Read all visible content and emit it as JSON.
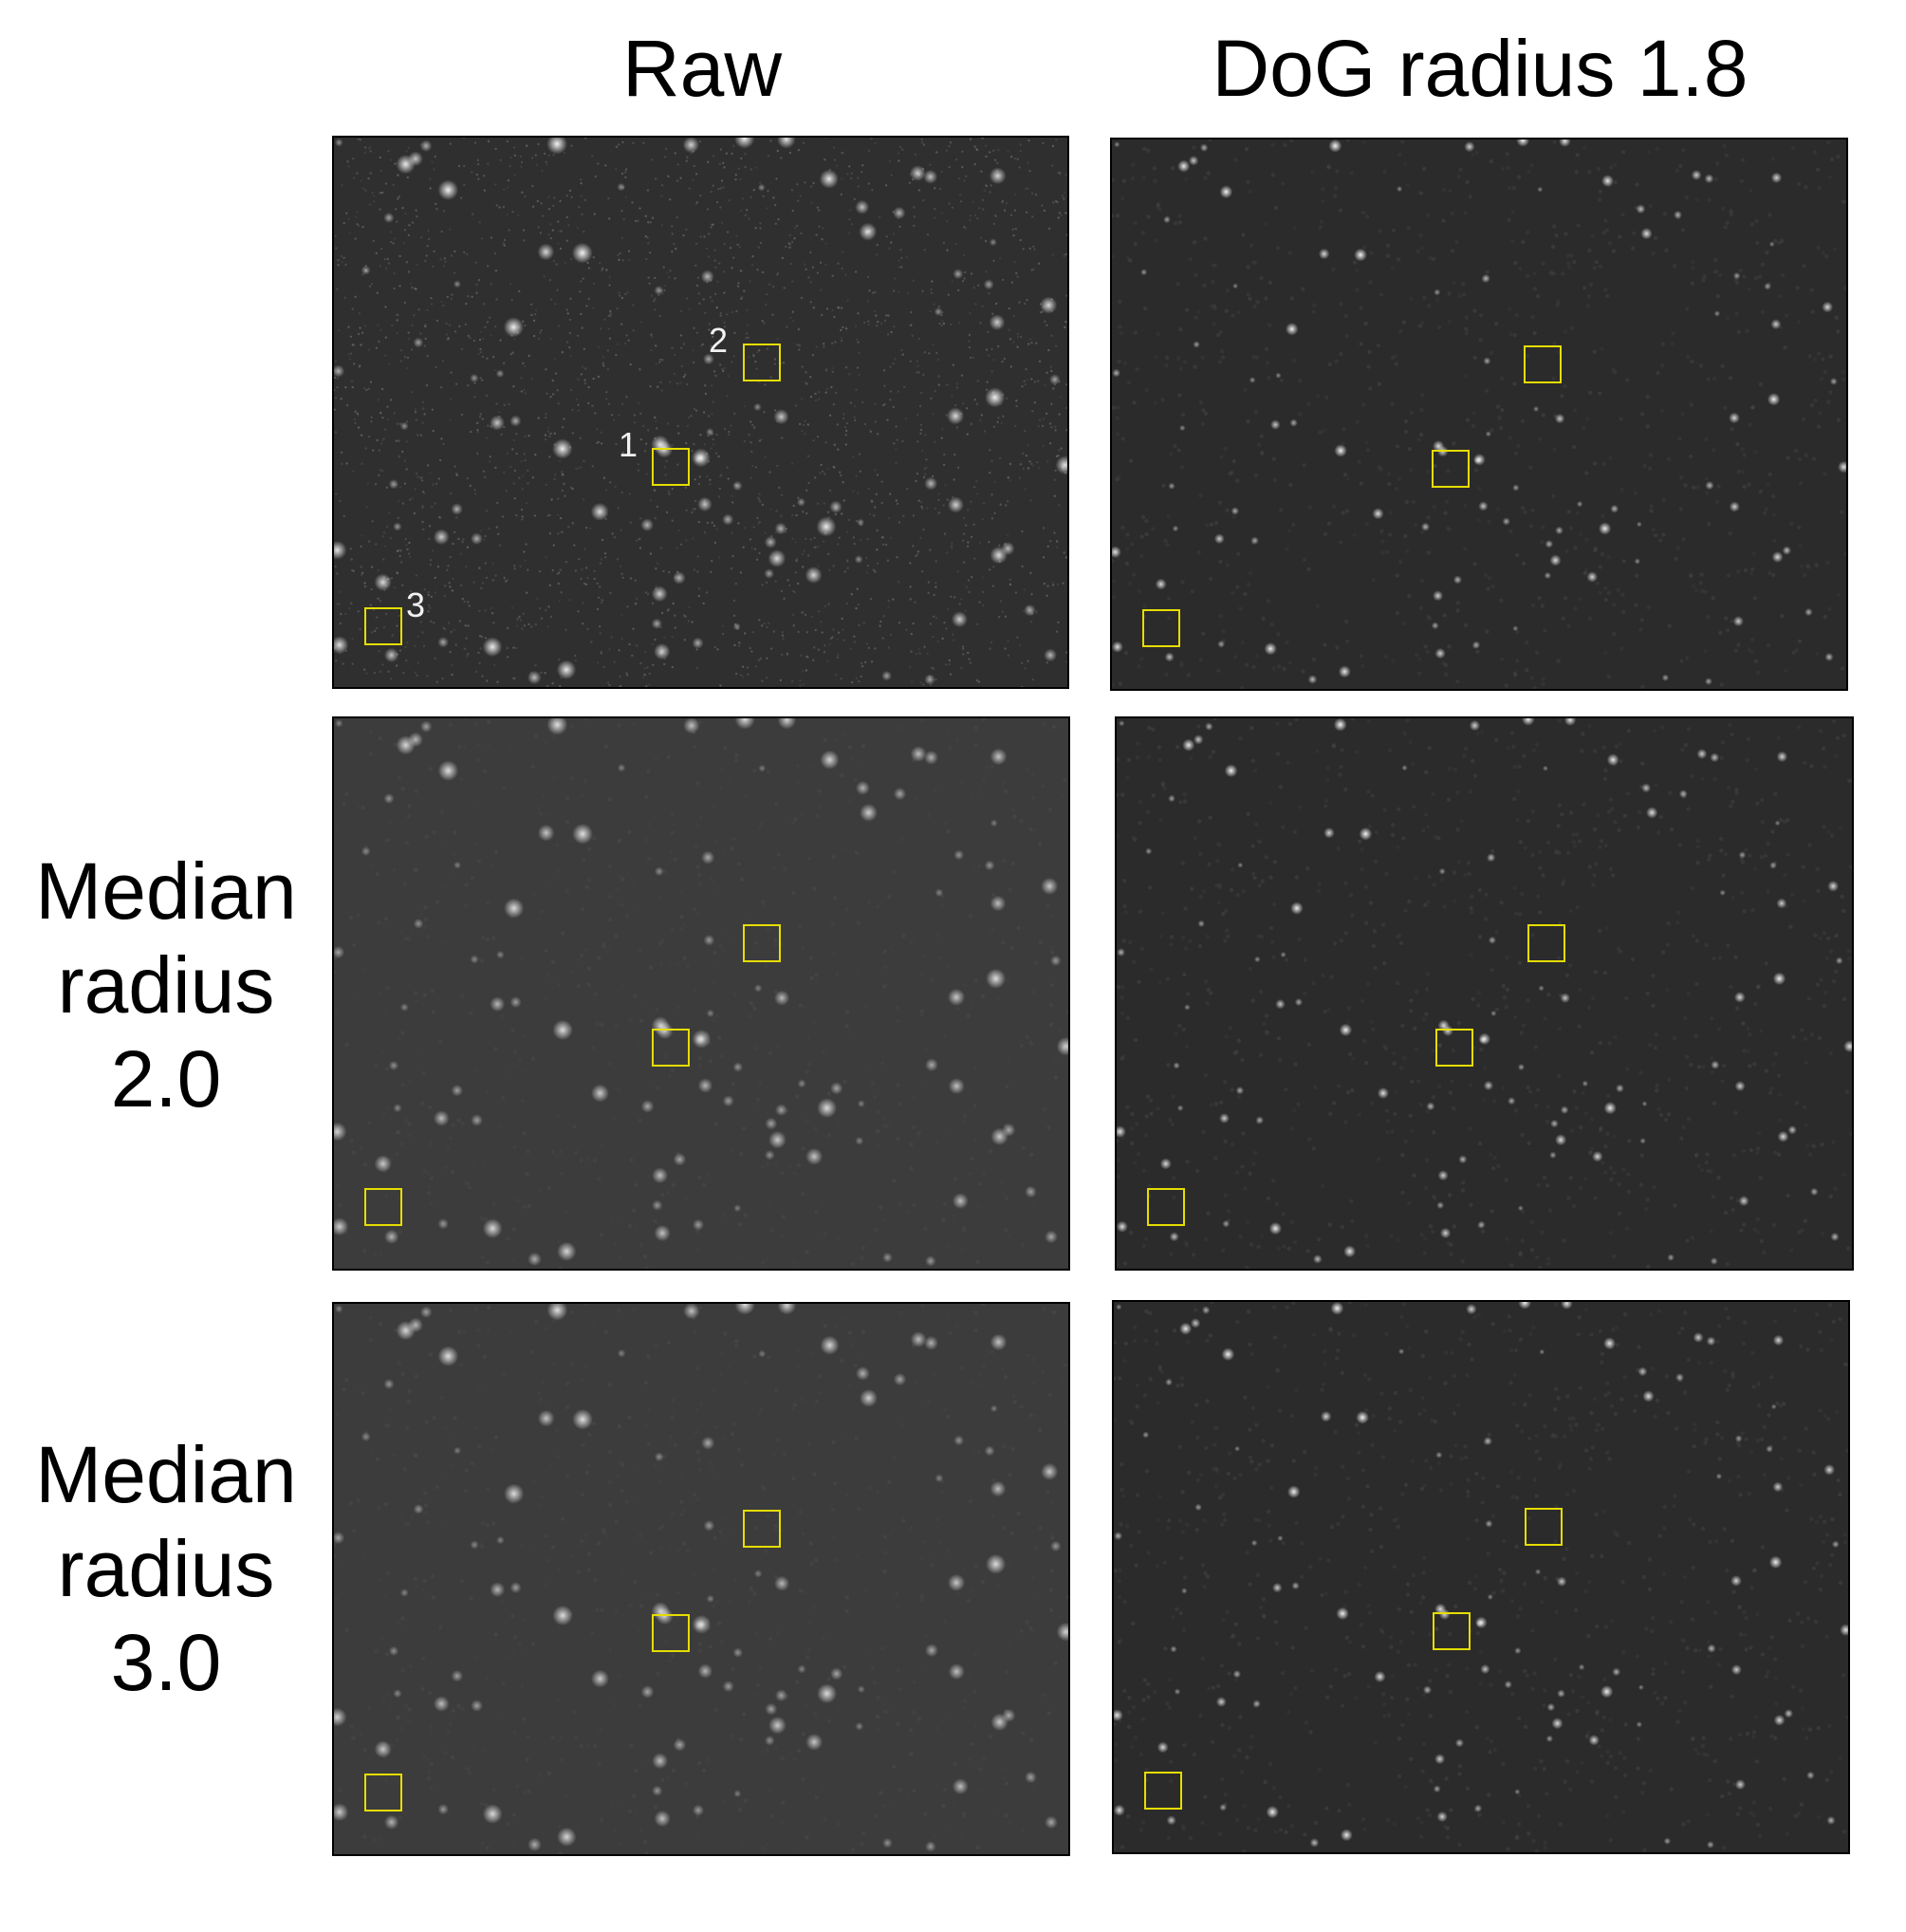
{
  "figure": {
    "columns": [
      "Raw",
      "DoG radius 1.8"
    ],
    "rows": [
      {
        "lines": []
      },
      {
        "lines": [
          "Median",
          "radius",
          "2.0"
        ]
      },
      {
        "lines": [
          "Median",
          "radius",
          "3.0"
        ]
      }
    ],
    "roi_labels": [
      "1",
      "2",
      "3"
    ],
    "colors": {
      "roi_box": "#e6dd00",
      "raw_bg": "#2f2f2f",
      "median_bg": "#3c3c3c",
      "dog_bg": "#2b2b2b",
      "spot": "#ffffff"
    }
  }
}
